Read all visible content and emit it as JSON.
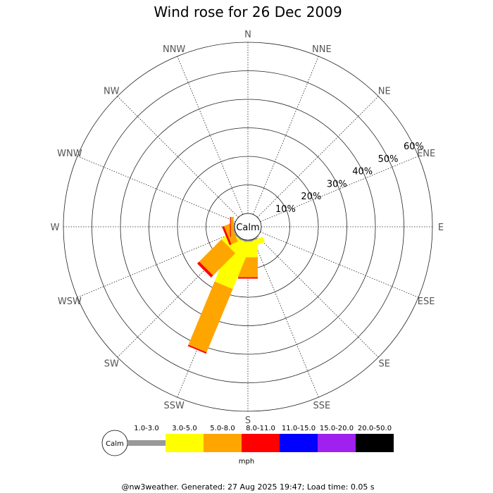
{
  "title": "Wind rose for 26 Dec 2009",
  "footer": "@nw3weather. Generated: 27 Aug 2025 19:47; Load time: 0.05 s",
  "calm_label": "Calm",
  "legend": {
    "unit": "mph",
    "calm_label": "Calm",
    "bins": [
      {
        "label": "1.0-3.0",
        "color": "#999999"
      },
      {
        "label": "3.0-5.0",
        "color": "#ffff00"
      },
      {
        "label": "5.0-8.0",
        "color": "#ffa500"
      },
      {
        "label": "8.0-11.0",
        "color": "#ff0000"
      },
      {
        "label": "11.0-15.0",
        "color": "#0000ff"
      },
      {
        "label": "15.0-20.0",
        "color": "#a020f0"
      },
      {
        "label": "20.0-50.0",
        "color": "#000000"
      }
    ]
  },
  "chart_data": {
    "type": "wind-rose",
    "title": "Wind rose for 26 Dec 2009",
    "unit": "mph",
    "directions": [
      "N",
      "NNE",
      "NE",
      "ENE",
      "E",
      "ESE",
      "SE",
      "SSE",
      "S",
      "SSW",
      "SW",
      "WSW",
      "W",
      "WNW",
      "NW",
      "NNW"
    ],
    "radial_ticks": [
      "10%",
      "20%",
      "30%",
      "40%",
      "50%",
      "60%"
    ],
    "radial_max": 60,
    "bins": [
      "1.0-3.0",
      "3.0-5.0",
      "5.0-8.0",
      "8.0-11.0",
      "11.0-15.0",
      "15.0-20.0",
      "20.0-50.0"
    ],
    "colors": [
      "#999999",
      "#ffff00",
      "#ffa500",
      "#ff0000",
      "#0000ff",
      "#a020f0",
      "#000000"
    ],
    "series": [
      {
        "direction": "SSE",
        "values": [
          0.5,
          2.0,
          0,
          0,
          0,
          0,
          0
        ]
      },
      {
        "direction": "S",
        "values": [
          0.5,
          5.5,
          7.0,
          0.5,
          0,
          0,
          0
        ]
      },
      {
        "direction": "SSW",
        "values": [
          0.5,
          17.0,
          24.0,
          0.5,
          0,
          0,
          0
        ]
      },
      {
        "direction": "SW",
        "values": [
          0.5,
          4.5,
          11.0,
          1.0,
          0,
          0,
          0
        ]
      },
      {
        "direction": "WSW",
        "values": [
          0.5,
          0,
          2.5,
          0.7,
          0,
          0,
          0
        ]
      },
      {
        "direction": "W",
        "values": [
          0.3,
          0,
          1.0,
          0.3,
          0,
          0,
          0
        ]
      }
    ]
  }
}
